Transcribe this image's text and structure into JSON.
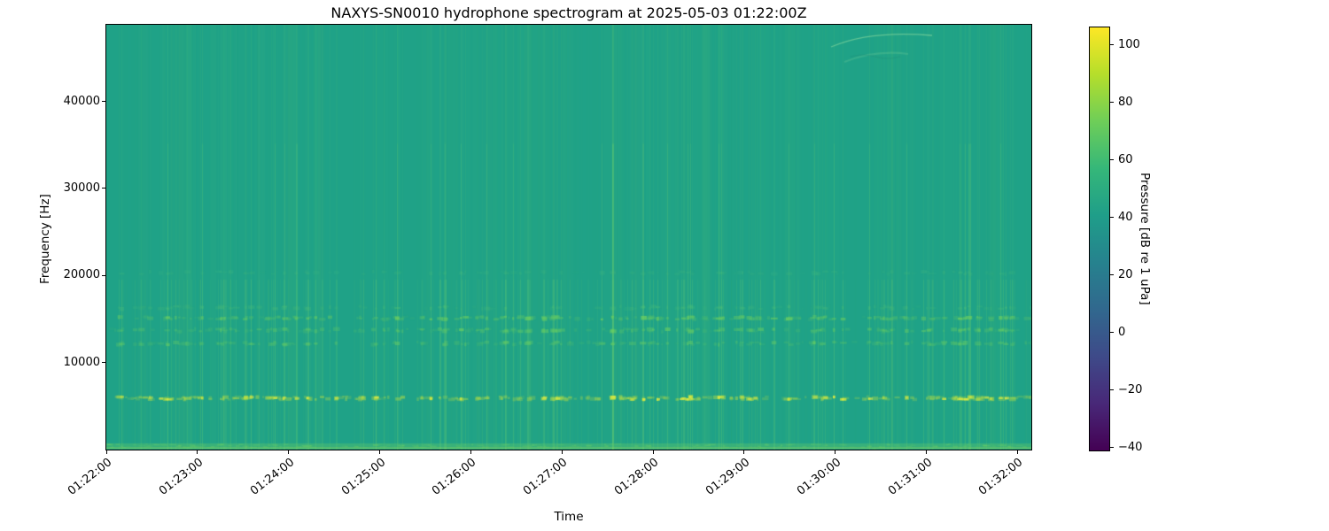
{
  "chart_data": {
    "type": "heatmap",
    "title": "NAXYS-SN0010 hydrophone spectrogram at 2025-05-03 01:22:00Z",
    "xlabel": "Time",
    "ylabel": "Frequency [Hz]",
    "x_ticks": [
      "01:22:00",
      "01:23:00",
      "01:24:00",
      "01:25:00",
      "01:26:00",
      "01:27:00",
      "01:28:00",
      "01:29:00",
      "01:30:00",
      "01:31:00",
      "01:32:00"
    ],
    "y_ticks": [
      10000,
      20000,
      30000,
      40000
    ],
    "freq_range_hz": [
      0,
      48800
    ],
    "grid": false,
    "colorbar": {
      "label": "Pressure [dB re 1 uPa]",
      "ticks": [
        100,
        80,
        60,
        40,
        20,
        0,
        -20,
        -40
      ],
      "vmin": -41,
      "vmax": 106,
      "colormap": "viridis",
      "colormap_stops": [
        "#440154",
        "#482878",
        "#3e4a89",
        "#31688e",
        "#26828e",
        "#1f9e89",
        "#35b779",
        "#6ece58",
        "#b5de2b",
        "#fde725"
      ]
    },
    "heatmap": {
      "background_color": "#1fa287",
      "background_level_db": 46,
      "stripe_color": "#5fc973",
      "description": "Uniform teal ambient background with many narrow vertical broadband click transients (brighter below ~18 kHz), dotted tonal bands, a bright continuous band at the lowest frequencies, and a faint whistle arc near 46 kHz around 01:30.",
      "tonal_bands": [
        {
          "freq_hz": 400,
          "strength": 0.55,
          "style": "continuous",
          "color": "#62c96a"
        },
        {
          "freq_hz": 5900,
          "strength": 1.0,
          "style": "dashed",
          "color": "#b9df44"
        },
        {
          "freq_hz": 12200,
          "strength": 0.5,
          "style": "dashed",
          "color": "#69ce63"
        },
        {
          "freq_hz": 13700,
          "strength": 0.55,
          "style": "dashed",
          "color": "#69ce63"
        },
        {
          "freq_hz": 15100,
          "strength": 0.62,
          "style": "dashed",
          "color": "#74d25c"
        },
        {
          "freq_hz": 16300,
          "strstrength": 0.3,
          "strength": 0.3,
          "style": "dashed",
          "color": "#58c575"
        },
        {
          "freq_hz": 20300,
          "strength": 0.22,
          "style": "dashed",
          "color": "#4fc07c"
        }
      ],
      "whistle_arc": {
        "time_frac": 0.79,
        "freq_hz": 46500,
        "color": "#96e0a0"
      }
    }
  }
}
